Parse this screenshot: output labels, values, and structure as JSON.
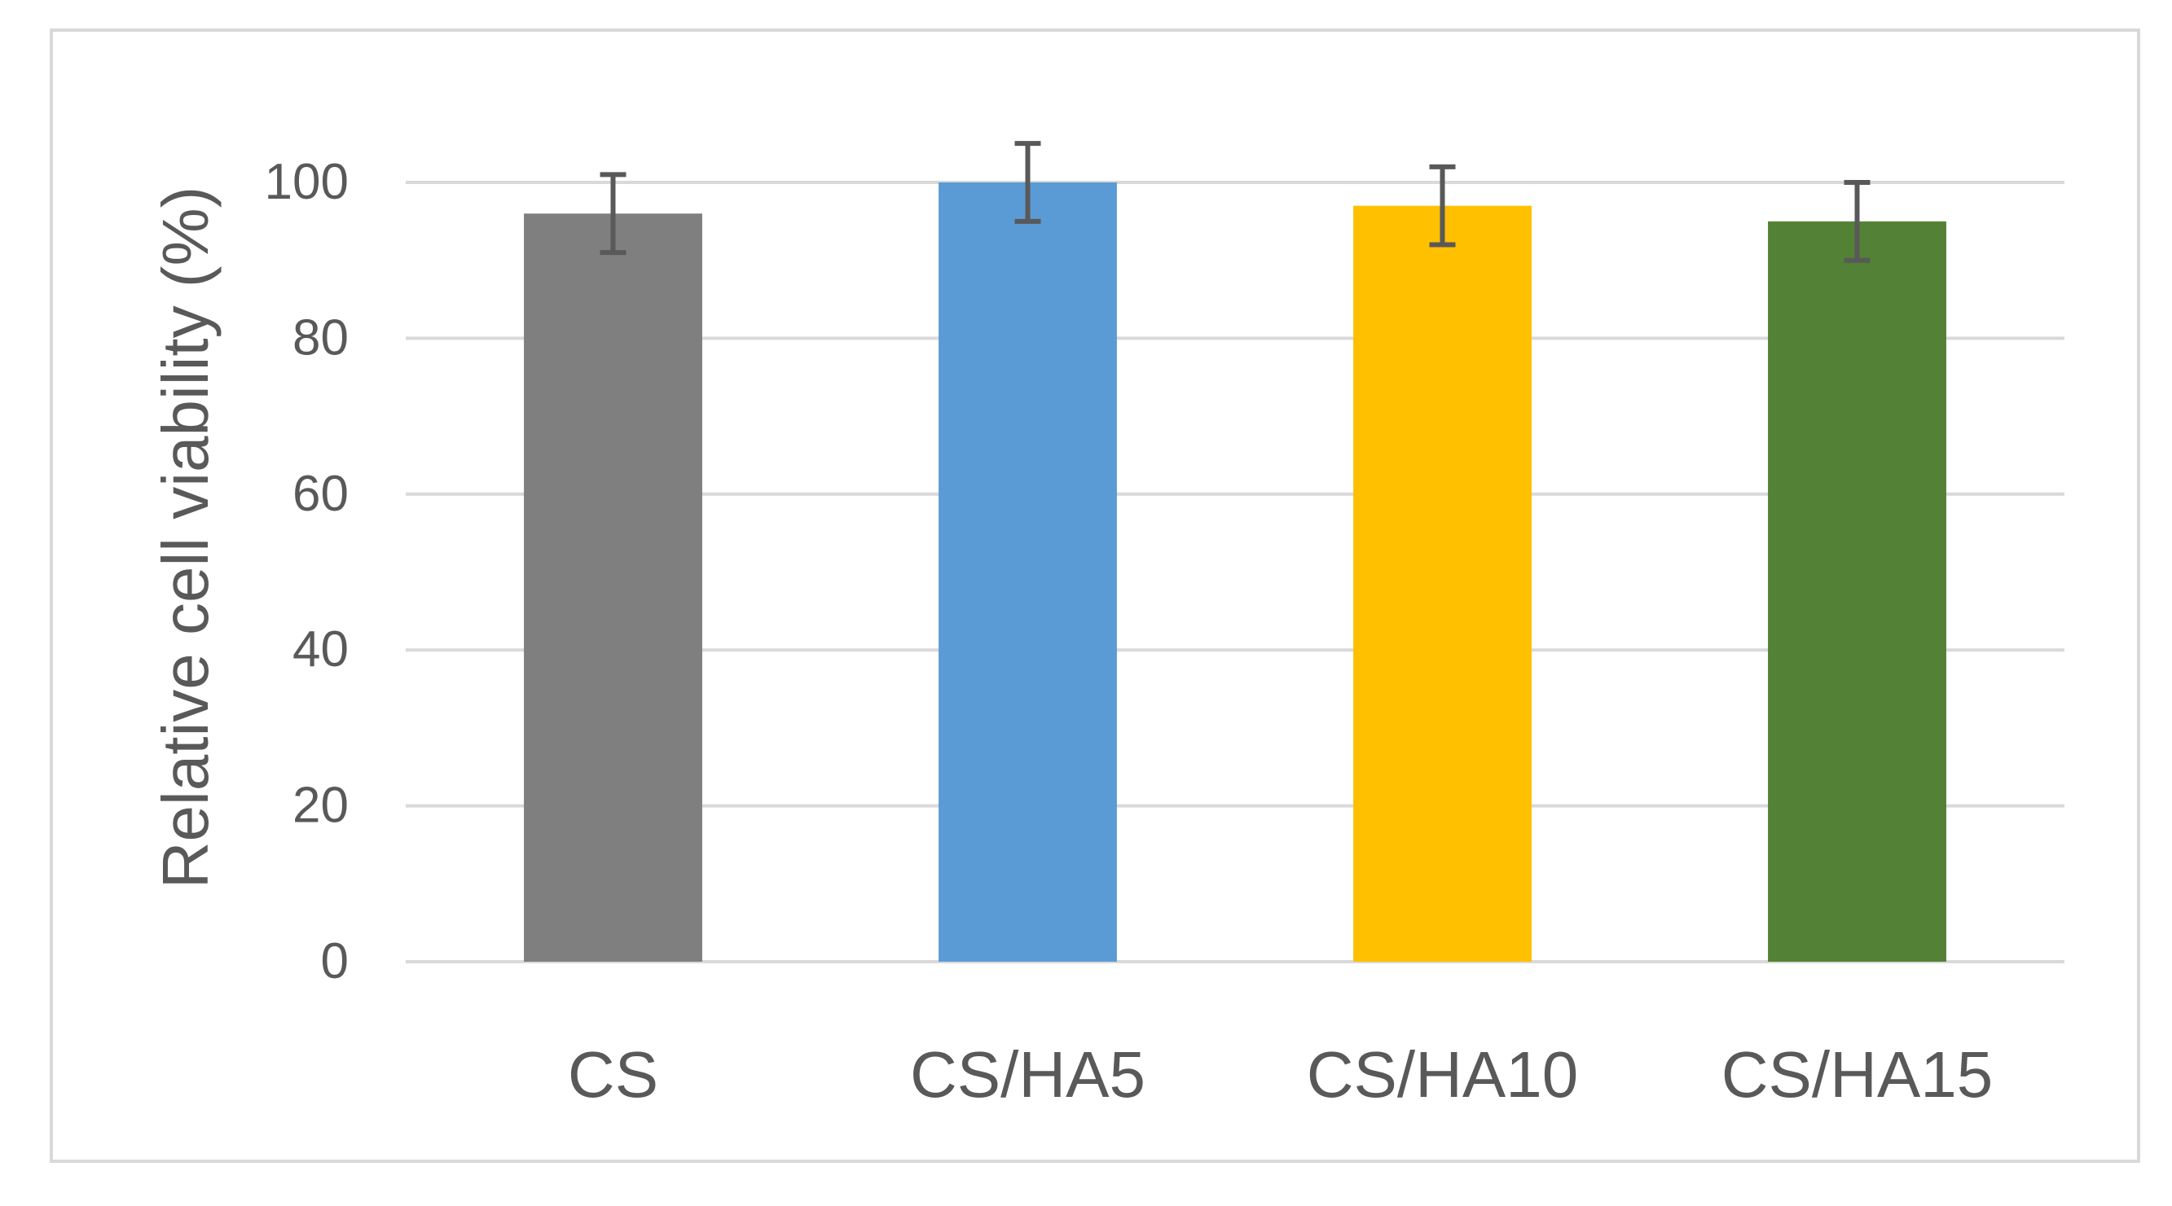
{
  "chart_data": {
    "type": "bar",
    "title": "",
    "xlabel": "",
    "ylabel": "Relative cell viability (%)",
    "ylim": [
      0,
      100
    ],
    "yticks": [
      "0",
      "20",
      "40",
      "60",
      "80",
      "100"
    ],
    "grid": true,
    "legend": "none",
    "categories": [
      "CS",
      "CS/HA5",
      "CS/HA10",
      "CS/HA15"
    ],
    "values": [
      96,
      100,
      97,
      95
    ],
    "errors": [
      5,
      5,
      5,
      5
    ],
    "colors": [
      "#7f7f7f",
      "#5b9bd5",
      "#ffc000",
      "#538135"
    ]
  }
}
